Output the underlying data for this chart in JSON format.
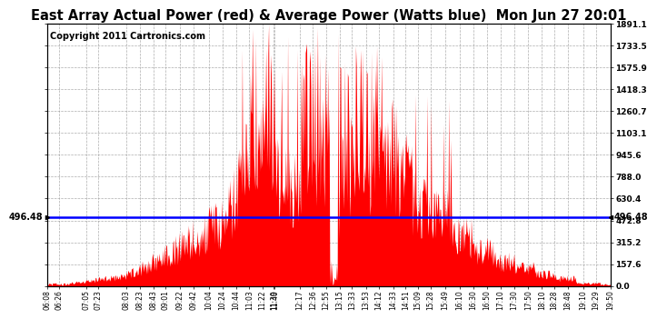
{
  "title": "East Array Actual Power (red) & Average Power (Watts blue)  Mon Jun 27 20:01",
  "copyright": "Copyright 2011 Cartronics.com",
  "avg_power": 496.48,
  "y_max": 1891.1,
  "y_ticks": [
    0.0,
    157.6,
    315.2,
    472.8,
    630.4,
    788.0,
    945.6,
    1103.1,
    1260.7,
    1418.3,
    1575.9,
    1733.5,
    1891.1
  ],
  "ytick_labels_right": [
    "0.0",
    "157.6",
    "315.2",
    "472.8",
    "630.4",
    "788.0",
    "945.6",
    "1103.1",
    "1260.7",
    "1418.3",
    "1575.9",
    "1733.5",
    "1891.1"
  ],
  "x_labels": [
    "06:08",
    "06:26",
    "07:05",
    "07:23",
    "08:03",
    "08:23",
    "08:43",
    "09:01",
    "09:22",
    "09:42",
    "10:04",
    "10:24",
    "10:44",
    "11:03",
    "11:22",
    "11:39",
    "11:40",
    "12:17",
    "12:36",
    "12:55",
    "13:15",
    "13:33",
    "13:53",
    "14:12",
    "14:33",
    "14:51",
    "15:09",
    "15:28",
    "15:49",
    "16:10",
    "16:30",
    "16:50",
    "17:10",
    "17:30",
    "17:50",
    "18:10",
    "18:28",
    "18:48",
    "19:10",
    "19:29",
    "19:50"
  ],
  "bar_color": "#FF0000",
  "line_color": "#0000FF",
  "bg_color": "#FFFFFF",
  "grid_color": "#999999",
  "title_color": "#000000",
  "copyright_color": "#000000",
  "title_fontsize": 10.5,
  "copyright_fontsize": 7,
  "avg_label_fontsize": 7,
  "tick_fontsize": 6.5,
  "xtick_fontsize": 5.5
}
